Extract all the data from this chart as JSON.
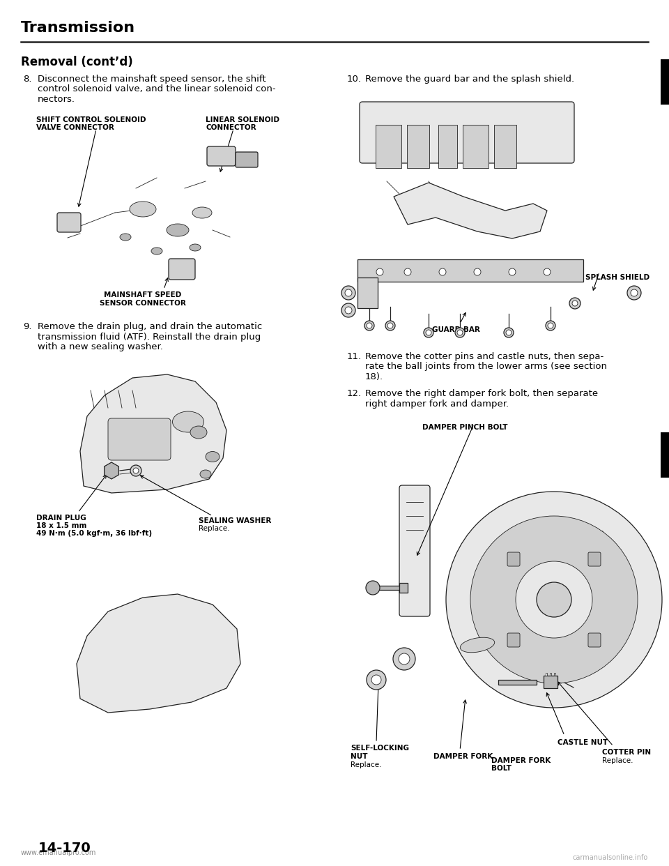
{
  "title": "Transmission",
  "subtitle": "Removal (cont’d)",
  "bg_color": "#ffffff",
  "text_color": "#000000",
  "page_number": "14-170",
  "watermark_left": "www.emanualpro.com",
  "watermark_right": "carmanualsonline.info",
  "step8_lines": [
    "Disconnect the mainshaft speed sensor, the shift",
    "control solenoid valve, and the linear solenoid con-",
    "nectors."
  ],
  "step9_lines": [
    "Remove the drain plug, and drain the automatic",
    "transmission fluid (ATF). Reinstall the drain plug",
    "with a new sealing washer."
  ],
  "step10_line": "Remove the guard bar and the splash shield.",
  "step11_lines": [
    "Remove the cotter pins and castle nuts, then sepa-",
    "rate the ball joints from the lower arms (see section",
    "18)."
  ],
  "step12_lines": [
    "Remove the right damper fork bolt, then separate",
    "right damper fork and damper."
  ],
  "label_shift_ctrl_line1": "SHIFT CONTROL SOLENOID",
  "label_shift_ctrl_line2": "VALVE CONNECTOR",
  "label_linear_sol_line1": "LINEAR SOLENOID",
  "label_linear_sol_line2": "CONNECTOR",
  "label_mainshaft_line1": "MAINSHAFT SPEED",
  "label_mainshaft_line2": "SENSOR CONNECTOR",
  "label_drain_plug_line1": "DRAIN PLUG",
  "label_drain_plug_line2": "18 x 1.5 mm",
  "label_drain_plug_line3": "49 N·m (5.0 kgf·m, 36 lbf·ft)",
  "label_sealing_washer_line1": "SEALING WASHER",
  "label_sealing_washer_line2": "Replace.",
  "label_splash_shield": "SPLASH SHIELD",
  "label_guard_bar": "GUARD BAR",
  "label_damper_pinch_bolt": "DAMPER PINCH BOLT",
  "label_self_locking_nut_line1": "SELF-LOCKING",
  "label_self_locking_nut_line2": "NUT",
  "label_self_locking_nut_line3": "Replace.",
  "label_castle_nut": "CASTLE NUT",
  "label_damper_fork": "DAMPER FORK",
  "label_damper_fork_bolt_line1": "DAMPER FORK",
  "label_damper_fork_bolt_line2": "BOLT",
  "label_cotter_pin_line1": "COTTER PIN",
  "label_cotter_pin_line2": "Replace.",
  "lw_thin": 0.6,
  "lw_med": 0.9,
  "lw_thick": 1.2,
  "line_color": "#222222",
  "fill_light": "#e8e8e8",
  "fill_mid": "#d0d0d0",
  "fill_dark": "#b8b8b8"
}
